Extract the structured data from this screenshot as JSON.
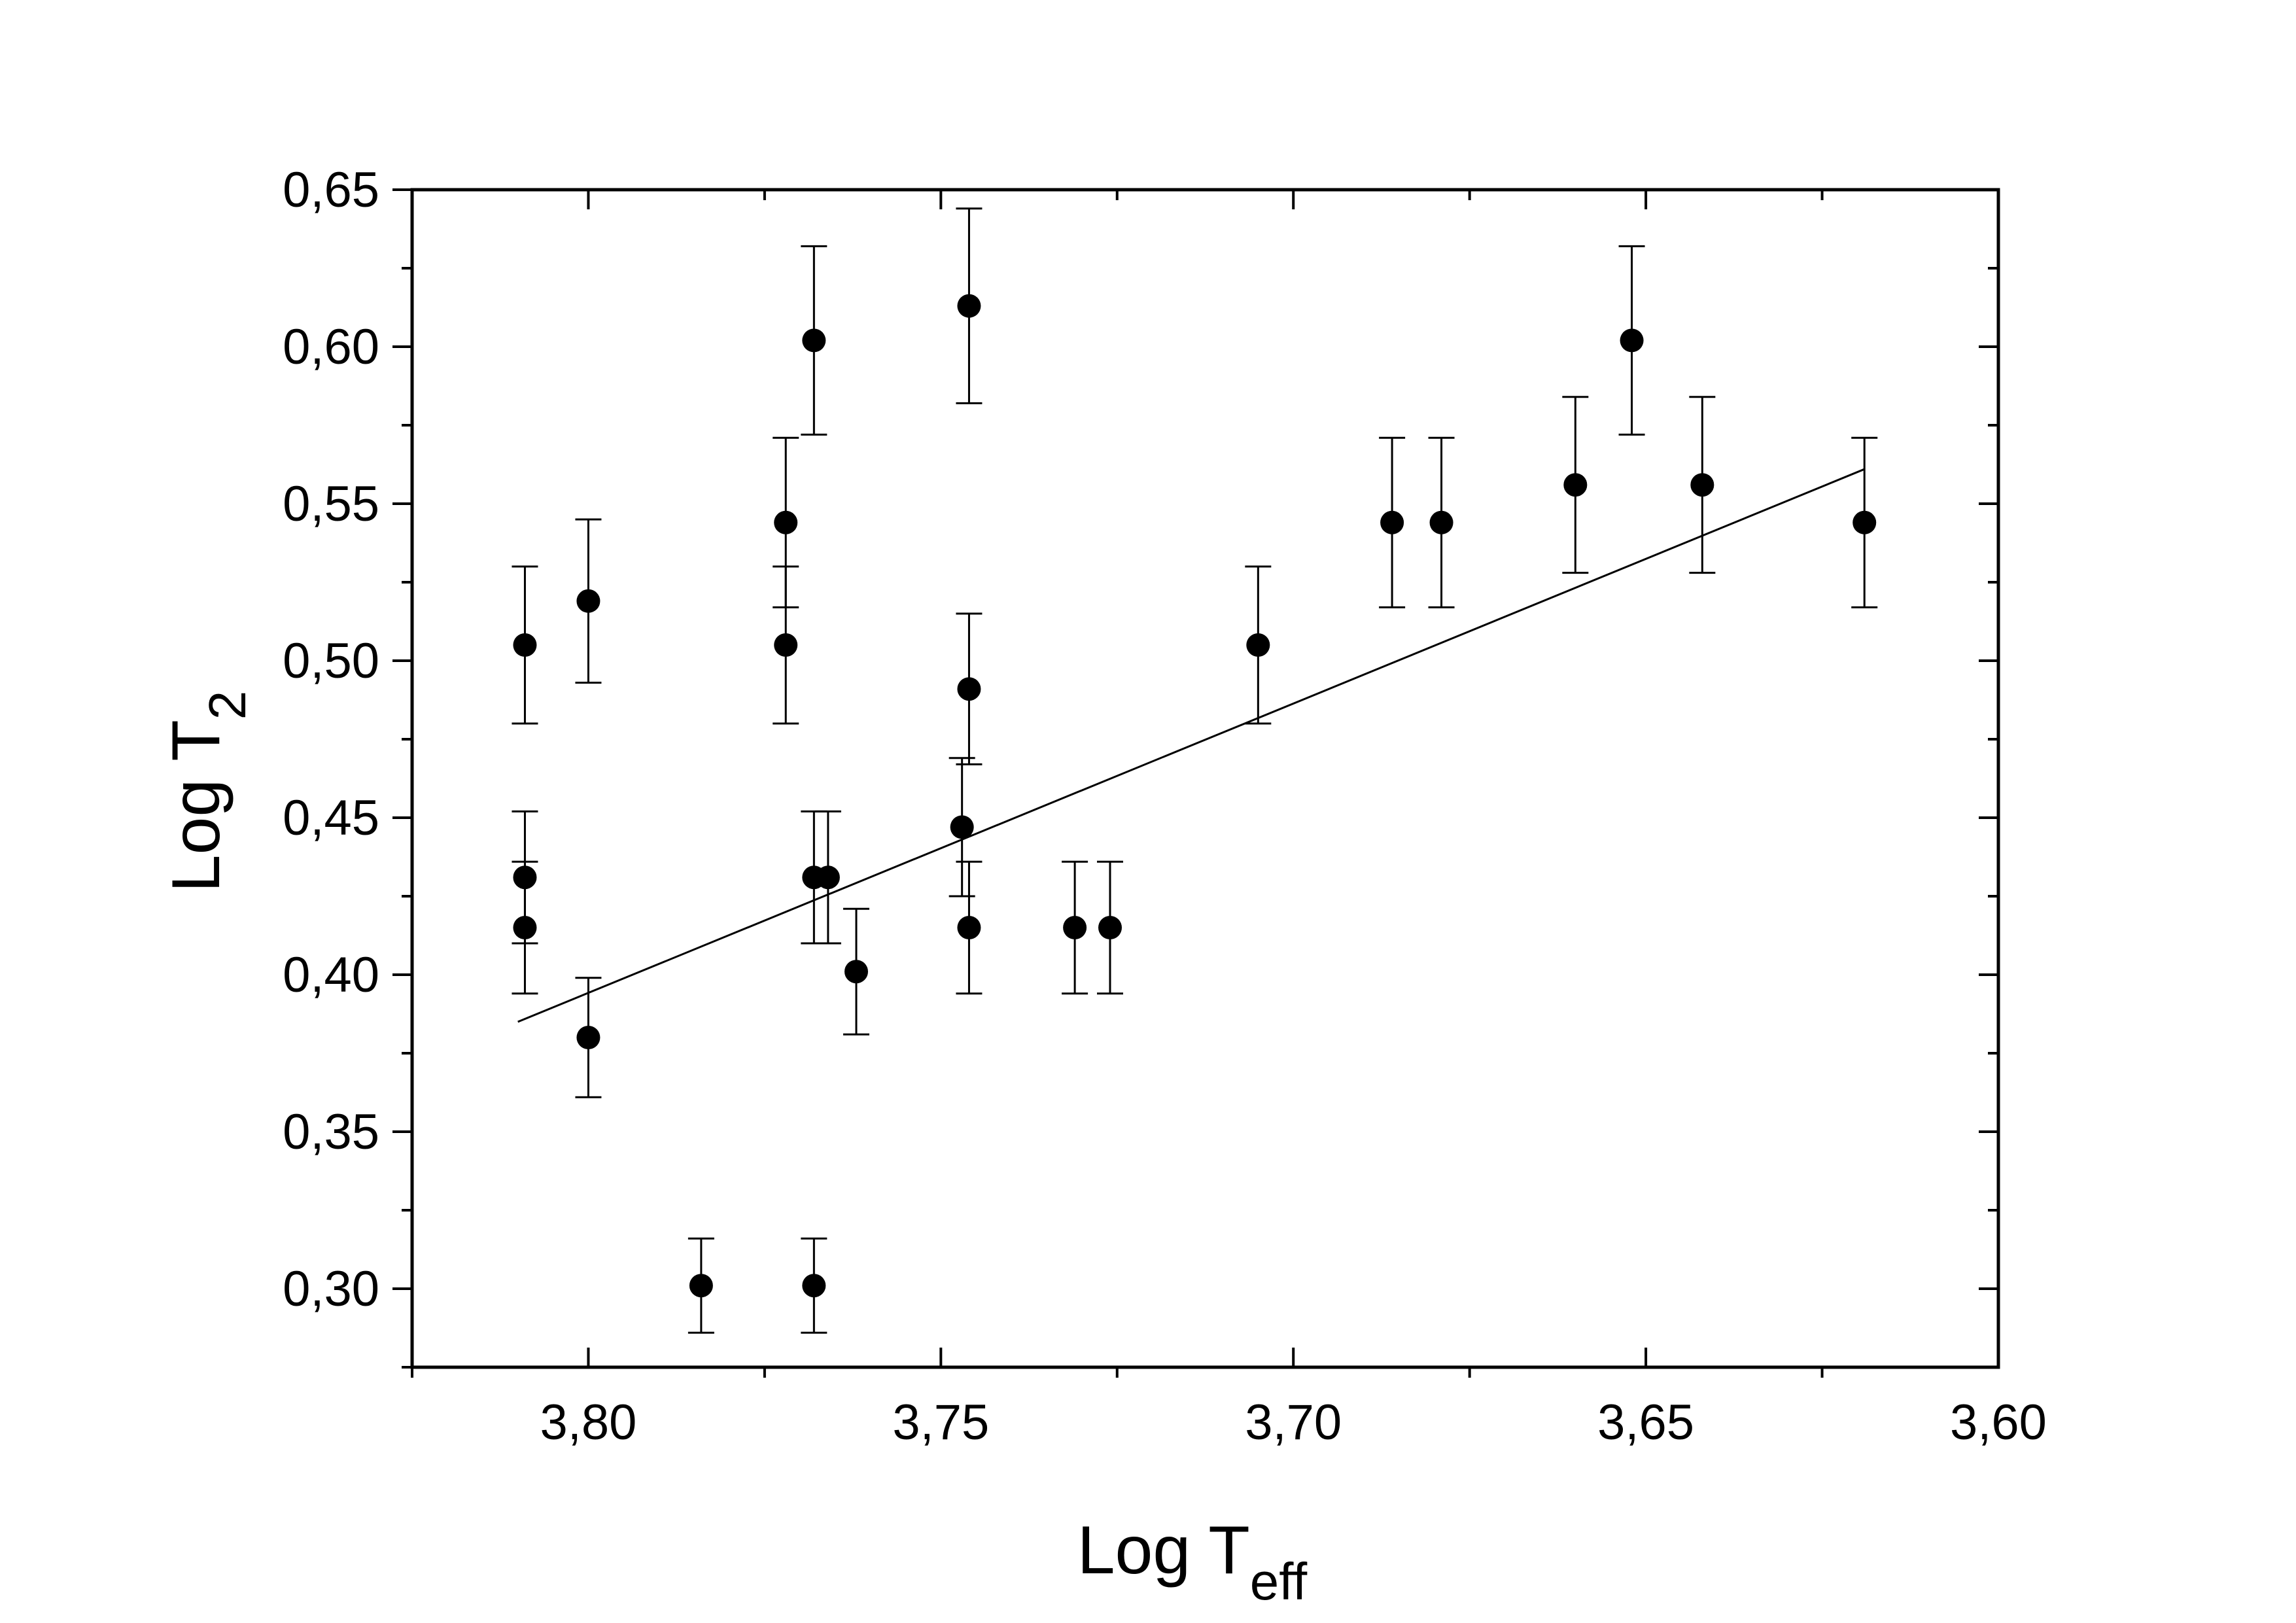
{
  "chart_data": {
    "type": "scatter",
    "xlabel": "Log T",
    "xlabel_sub": "eff",
    "ylabel": "Log T",
    "ylabel_sub": "2",
    "xlim": [
      3.825,
      3.6
    ],
    "x_reversed": true,
    "ylim": [
      0.275,
      0.65
    ],
    "x_ticks": [
      3.8,
      3.75,
      3.7,
      3.65,
      3.6
    ],
    "x_tick_labels": [
      "3,80",
      "3,75",
      "3,70",
      "3,65",
      "3,60"
    ],
    "x_minor_step": 0.025,
    "y_ticks": [
      0.3,
      0.35,
      0.4,
      0.45,
      0.5,
      0.55,
      0.6,
      0.65
    ],
    "y_tick_labels": [
      "0,30",
      "0,35",
      "0,40",
      "0,45",
      "0,50",
      "0,55",
      "0,60",
      "0,65"
    ],
    "y_minor_step": 0.025,
    "grid": false,
    "legend": "none",
    "marker_color": "#000000",
    "series": [
      {
        "points": [
          {
            "x": 3.809,
            "y": 0.505,
            "err": 0.025
          },
          {
            "x": 3.809,
            "y": 0.431,
            "err": 0.021
          },
          {
            "x": 3.809,
            "y": 0.415,
            "err": 0.021
          },
          {
            "x": 3.8,
            "y": 0.519,
            "err": 0.026
          },
          {
            "x": 3.8,
            "y": 0.38,
            "err": 0.019
          },
          {
            "x": 3.784,
            "y": 0.301,
            "err": 0.015
          },
          {
            "x": 3.772,
            "y": 0.544,
            "err": 0.027
          },
          {
            "x": 3.772,
            "y": 0.505,
            "err": 0.025
          },
          {
            "x": 3.768,
            "y": 0.602,
            "err": 0.03
          },
          {
            "x": 3.768,
            "y": 0.431,
            "err": 0.021
          },
          {
            "x": 3.768,
            "y": 0.301,
            "err": 0.015
          },
          {
            "x": 3.766,
            "y": 0.431,
            "err": 0.021
          },
          {
            "x": 3.762,
            "y": 0.401,
            "err": 0.02
          },
          {
            "x": 3.746,
            "y": 0.613,
            "err": 0.031
          },
          {
            "x": 3.746,
            "y": 0.491,
            "err": 0.024
          },
          {
            "x": 3.746,
            "y": 0.415,
            "err": 0.021
          },
          {
            "x": 3.747,
            "y": 0.447,
            "err": 0.022
          },
          {
            "x": 3.731,
            "y": 0.415,
            "err": 0.021
          },
          {
            "x": 3.726,
            "y": 0.415,
            "err": 0.021
          },
          {
            "x": 3.705,
            "y": 0.505,
            "err": 0.025
          },
          {
            "x": 3.686,
            "y": 0.544,
            "err": 0.027
          },
          {
            "x": 3.679,
            "y": 0.544,
            "err": 0.027
          },
          {
            "x": 3.66,
            "y": 0.556,
            "err": 0.028
          },
          {
            "x": 3.652,
            "y": 0.602,
            "err": 0.03
          },
          {
            "x": 3.642,
            "y": 0.556,
            "err": 0.028
          },
          {
            "x": 3.619,
            "y": 0.544,
            "err": 0.027
          }
        ]
      }
    ],
    "fit_line": {
      "x": [
        3.81,
        3.619
      ],
      "y": [
        0.385,
        0.561
      ]
    }
  }
}
